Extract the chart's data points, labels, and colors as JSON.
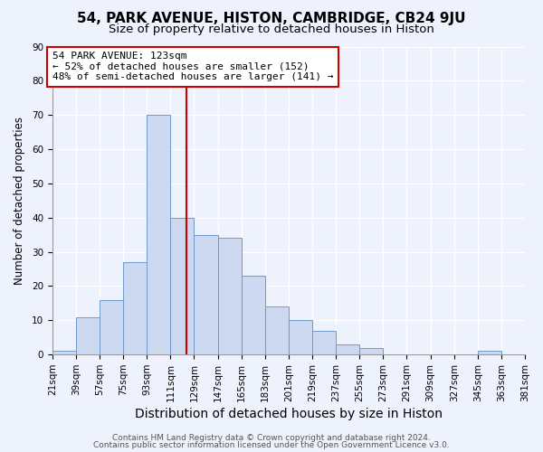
{
  "title": "54, PARK AVENUE, HISTON, CAMBRIDGE, CB24 9JU",
  "subtitle": "Size of property relative to detached houses in Histon",
  "xlabel": "Distribution of detached houses by size in Histon",
  "ylabel": "Number of detached properties",
  "bar_left_edges": [
    21,
    39,
    57,
    75,
    93,
    111,
    129,
    147,
    165,
    183,
    201,
    219,
    237,
    255,
    273,
    291,
    309,
    327,
    345,
    363
  ],
  "bar_heights": [
    1,
    11,
    16,
    27,
    70,
    40,
    35,
    34,
    23,
    14,
    10,
    7,
    3,
    2,
    0,
    0,
    0,
    0,
    1,
    0
  ],
  "bin_width": 18,
  "bar_color": "#ccd9f0",
  "bar_edge_color": "#7099cc",
  "vline_x": 123,
  "vline_color": "#cc0000",
  "annotation_text": "54 PARK AVENUE: 123sqm\n← 52% of detached houses are smaller (152)\n48% of semi-detached houses are larger (141) →",
  "annotation_box_color": "#ffffff",
  "annotation_box_edge": "#cc0000",
  "ylim": [
    0,
    90
  ],
  "yticks": [
    0,
    10,
    20,
    30,
    40,
    50,
    60,
    70,
    80,
    90
  ],
  "tick_labels": [
    "21sqm",
    "39sqm",
    "57sqm",
    "75sqm",
    "93sqm",
    "111sqm",
    "129sqm",
    "147sqm",
    "165sqm",
    "183sqm",
    "201sqm",
    "219sqm",
    "237sqm",
    "255sqm",
    "273sqm",
    "291sqm",
    "309sqm",
    "327sqm",
    "345sqm",
    "363sqm",
    "381sqm"
  ],
  "footer_line1": "Contains HM Land Registry data © Crown copyright and database right 2024.",
  "footer_line2": "Contains public sector information licensed under the Open Government Licence v3.0.",
  "bg_color": "#eef2fc",
  "plot_bg_color": "#eef2fc",
  "grid_color": "#ffffff",
  "title_fontsize": 11,
  "subtitle_fontsize": 9.5,
  "xlabel_fontsize": 10,
  "ylabel_fontsize": 8.5,
  "tick_fontsize": 7.5,
  "annot_fontsize": 8,
  "footer_fontsize": 6.5
}
